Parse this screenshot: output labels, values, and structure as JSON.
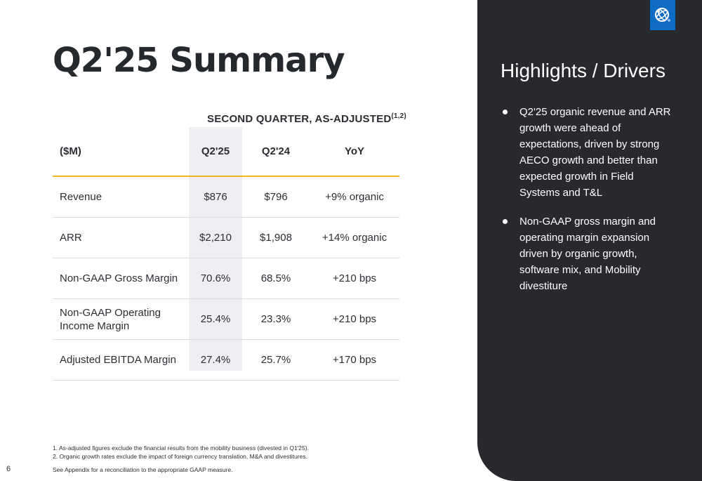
{
  "slide": {
    "title": "Q2'25 Summary",
    "page_number": "6"
  },
  "table": {
    "heading": "SECOND QUARTER, AS-ADJUSTED",
    "heading_sup": "(1,2)",
    "columns": [
      "($M)",
      "Q2'25",
      "Q2'24",
      "YoY"
    ],
    "rows": [
      {
        "label": "Revenue",
        "q2_25": "$876",
        "q2_24": "$796",
        "yoy": "+9% organic"
      },
      {
        "label": "ARR",
        "q2_25": "$2,210",
        "q2_24": "$1,908",
        "yoy": "+14% organic"
      },
      {
        "label": "Non-GAAP Gross Margin",
        "q2_25": "70.6%",
        "q2_24": "68.5%",
        "yoy": "+210 bps"
      },
      {
        "label_line1": "Non-GAAP Operating",
        "label_line2": "Income Margin",
        "q2_25": "25.4%",
        "q2_24": "23.3%",
        "yoy": "+210 bps"
      },
      {
        "label": "Adjusted EBITDA Margin",
        "q2_25": "27.4%",
        "q2_24": "25.7%",
        "yoy": "+170 bps"
      }
    ]
  },
  "footnotes": {
    "note1": "1.  As-adjusted figures exclude the financial results from the mobility business (divested in Q1'25).",
    "note2": "2.  Organic growth rates exclude the impact of foreign currency translation, M&A and divestitures.",
    "appendix": "See Appendix for a reconciliation to the appropriate GAAP measure."
  },
  "sidebar": {
    "title": "Highlights / Drivers",
    "bullets": [
      "Q2'25 organic revenue and ARR growth were ahead of expectations, driven by strong AECO growth and better than expected growth in Field Systems and T&L",
      "Non-GAAP gross margin and operating margin expansion driven by organic growth, software mix, and Mobility divestiture"
    ],
    "logo_icon": "trimble-globe-icon"
  },
  "colors": {
    "panel": "#27292d",
    "accent_rule": "#f0b41e",
    "column_highlight": "#eeeef3",
    "logo_blue": "#0f6cc4"
  }
}
